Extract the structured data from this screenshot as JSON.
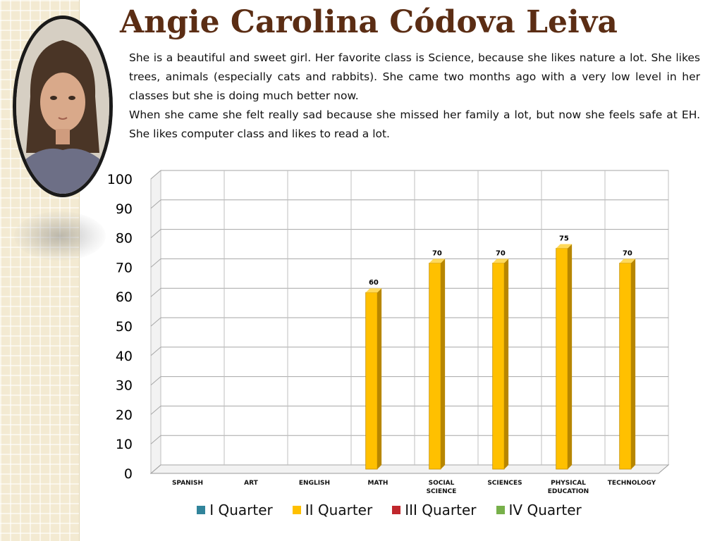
{
  "slide": {
    "title": "Angie Carolina Códova Leiva",
    "bio_paragraphs": [
      "She is a beautiful and sweet girl.   Her favorite class is Science, because she likes nature a lot.   She likes trees, animals (especially cats and rabbits). She came two months ago with a very low level in her classes but she is doing much better now.",
      "When she came she felt really sad because she missed her family a lot, but now she feels safe at EH.   She likes computer class and likes to read a lot."
    ]
  },
  "chart_data": {
    "type": "bar",
    "categories": [
      "SPANISH",
      "ART",
      "ENGLISH",
      "MATH",
      "SOCIAL SCIENCE",
      "SCIENCES",
      "PHYSICAL EDUCATION",
      "TECHNOLOGY"
    ],
    "series": [
      {
        "name": "I Quarter",
        "color": "#31849b",
        "values": [
          null,
          null,
          null,
          null,
          null,
          null,
          null,
          null
        ]
      },
      {
        "name": "II Quarter",
        "color": "#ffc000",
        "values": [
          null,
          null,
          null,
          60,
          70,
          70,
          75,
          70
        ]
      },
      {
        "name": "III Quarter",
        "color": "#c0272d",
        "values": [
          null,
          null,
          null,
          null,
          null,
          null,
          null,
          null
        ]
      },
      {
        "name": "IV Quarter",
        "color": "#77b04a",
        "values": [
          null,
          null,
          null,
          null,
          null,
          null,
          null,
          null
        ]
      }
    ],
    "data_labels": true,
    "ylim": [
      0,
      100
    ],
    "yticks": [
      0,
      10,
      20,
      30,
      40,
      50,
      60,
      70,
      80,
      90,
      100
    ],
    "grid": true,
    "legend_position": "bottom"
  }
}
